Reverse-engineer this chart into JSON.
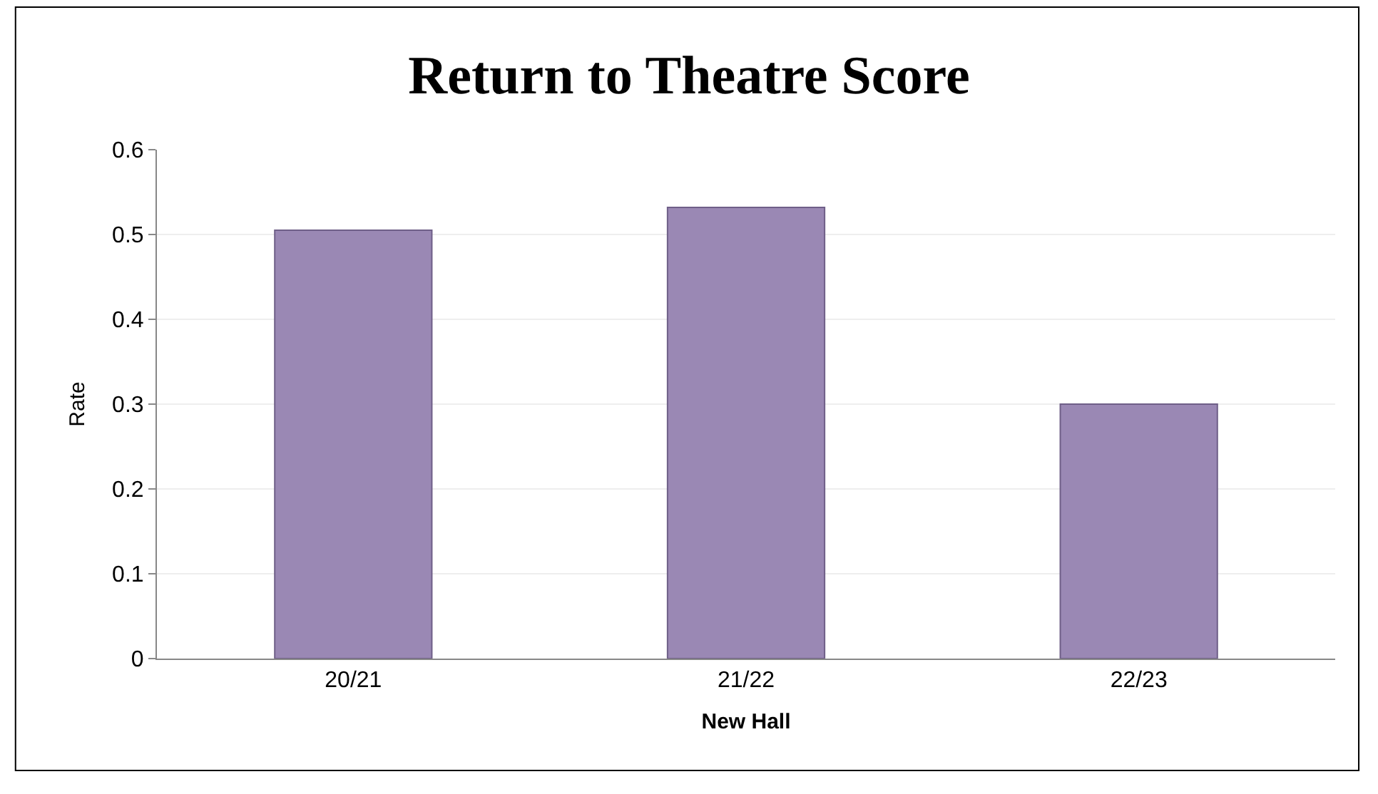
{
  "chart_data": {
    "type": "bar",
    "title": "Return to Theatre Score",
    "xlabel": "New Hall",
    "ylabel": "Rate",
    "categories": [
      "20/21",
      "21/22",
      "22/23"
    ],
    "values": [
      0.505,
      0.532,
      0.3
    ],
    "color": "#9a88b4",
    "ylim": [
      0,
      0.6
    ],
    "yticks": [
      0,
      0.1,
      0.2,
      0.3,
      0.4,
      0.5,
      0.6
    ],
    "grid": "y"
  }
}
